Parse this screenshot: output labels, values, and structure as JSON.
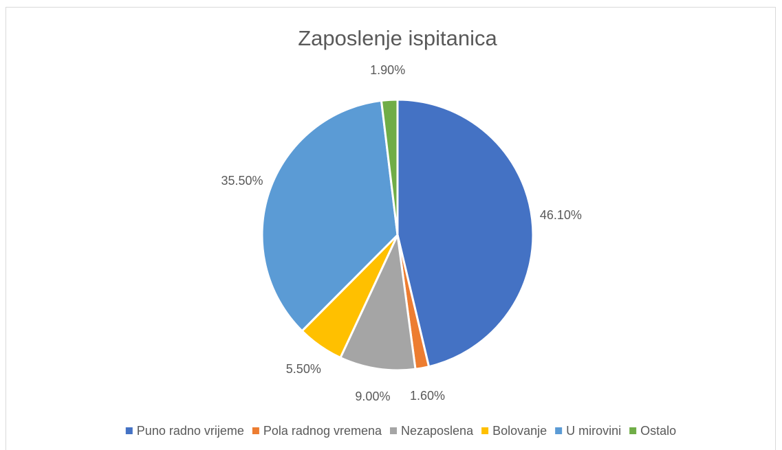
{
  "chart_data": {
    "type": "pie",
    "title": "Zaposlenje ispitanica",
    "categories": [
      "Puno radno vrijeme",
      "Pola radnog vremena",
      "Nezaposlena",
      "Bolovanje",
      "U mirovini",
      "Ostalo"
    ],
    "values": [
      46.1,
      1.6,
      9.0,
      5.5,
      35.5,
      1.9
    ],
    "value_labels": [
      "46.10%",
      "1.60%",
      "9.00%",
      "5.50%",
      "35.50%",
      "1.90%"
    ],
    "colors": [
      "#4472c4",
      "#ed7d31",
      "#a5a5a5",
      "#ffc000",
      "#5b9bd5",
      "#70ad47"
    ],
    "legend": "bottom"
  }
}
